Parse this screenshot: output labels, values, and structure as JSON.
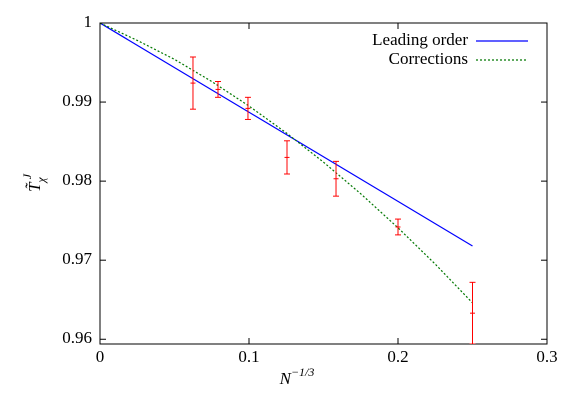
{
  "chart_data": {
    "type": "line",
    "xlabel": {
      "base": "N",
      "sup": "−1/3"
    },
    "ylabel": {
      "base": "T̃",
      "sub": "χ",
      "sup": "J"
    },
    "xlim": [
      0,
      0.3
    ],
    "ylim": [
      0.9594,
      1
    ],
    "xticks": [
      0,
      0.1,
      0.2,
      0.3
    ],
    "yticks": [
      0.96,
      0.97,
      0.98,
      0.99,
      1
    ],
    "legend": "upper right",
    "series": [
      {
        "name": "Leading order",
        "color": "#0000ff",
        "style": "solid",
        "x": [
          0,
          0.25
        ],
        "values": [
          1,
          0.9718
        ]
      },
      {
        "name": "Corrections",
        "color": "#007700",
        "style": "dotted",
        "x": [
          0,
          0.025,
          0.05,
          0.075,
          0.1,
          0.125,
          0.15,
          0.175,
          0.2,
          0.225,
          0.25
        ],
        "values": [
          1,
          0.9978,
          0.9954,
          0.9926,
          0.9895,
          0.9861,
          0.9824,
          0.9784,
          0.9741,
          0.9695,
          0.9646
        ]
      }
    ],
    "points": {
      "color": "#ff0000",
      "x": [
        0.0624,
        0.0792,
        0.0993,
        0.1255,
        0.1584,
        0.2,
        0.25
      ],
      "values": [
        0.9924,
        0.9916,
        0.9892,
        0.983,
        0.9803,
        0.9742,
        0.9633
      ],
      "errors": [
        0.0033,
        0.001,
        0.0014,
        0.0021,
        0.0022,
        0.001,
        0.0039
      ]
    }
  }
}
